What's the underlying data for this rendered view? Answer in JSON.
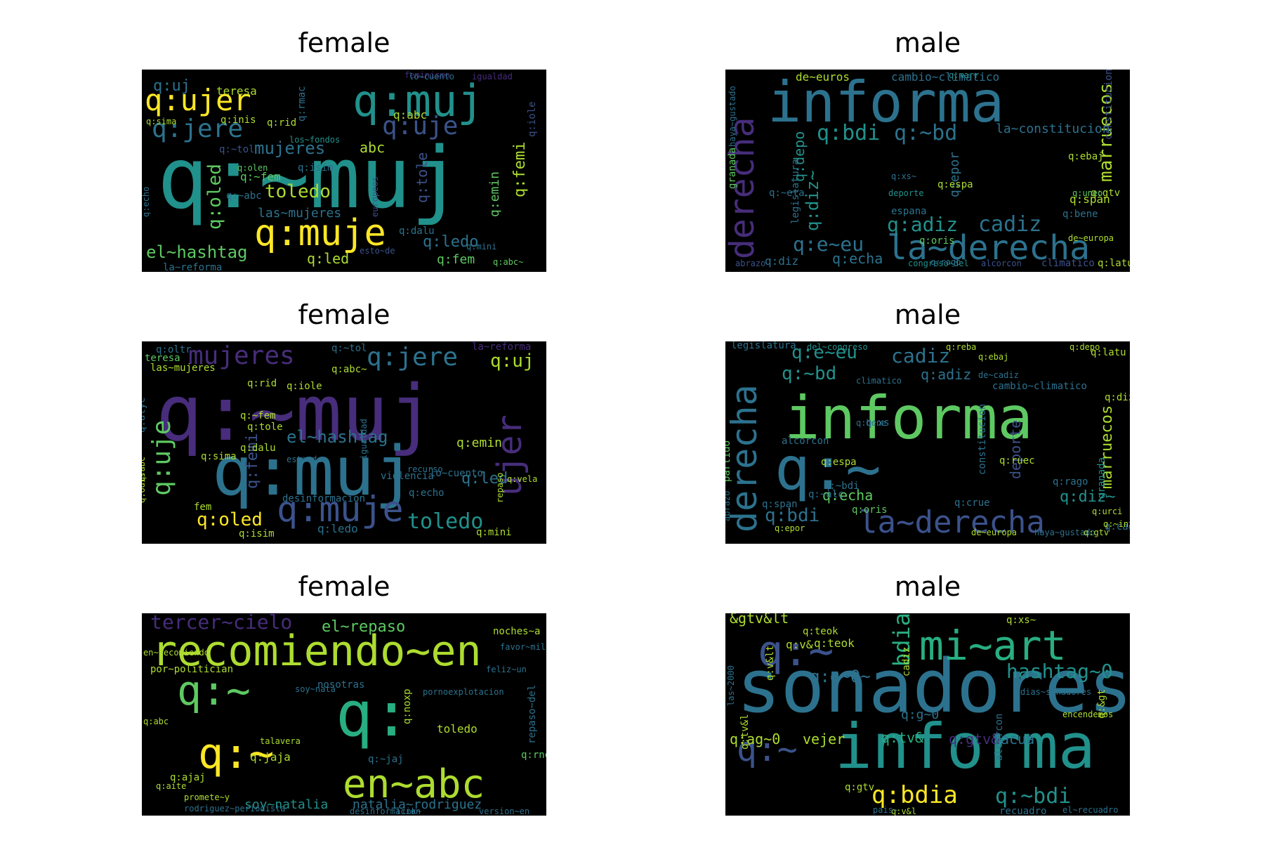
{
  "colors": {
    "background": "#000000",
    "viridis": [
      "#440154",
      "#472d7b",
      "#3b528b",
      "#2c728e",
      "#21918c",
      "#28ae80",
      "#5ec962",
      "#addc30",
      "#fde725"
    ]
  },
  "panels": [
    {
      "title": "female",
      "words": [
        {
          "text": "q:~muj",
          "c": 4
        },
        {
          "text": "q:muj",
          "c": 4
        },
        {
          "text": "q:muje",
          "c": 8
        },
        {
          "text": "q:ujer",
          "c": 8
        },
        {
          "text": "q:jere",
          "c": 3
        },
        {
          "text": "q:uje",
          "c": 2
        },
        {
          "text": "mujeres",
          "c": 3
        },
        {
          "text": "toledo",
          "c": 7
        },
        {
          "text": "las~mujeres",
          "c": 3
        },
        {
          "text": "el~hashtag",
          "c": 6
        },
        {
          "text": "abc",
          "c": 7
        },
        {
          "text": "q:oled",
          "c": 6
        },
        {
          "text": "q:femi",
          "c": 7
        },
        {
          "text": "q:emin",
          "c": 6
        },
        {
          "text": "q:ledo",
          "c": 3
        },
        {
          "text": "q:led",
          "c": 7
        },
        {
          "text": "q:fem",
          "c": 6
        },
        {
          "text": "q:tole",
          "c": 2
        },
        {
          "text": "q:uj",
          "c": 3
        },
        {
          "text": "teresa",
          "c": 7
        },
        {
          "text": "q:abc",
          "c": 7
        },
        {
          "text": "q:inis",
          "c": 7
        },
        {
          "text": "q:rid",
          "c": 7
        },
        {
          "text": "q:rmac",
          "c": 3
        },
        {
          "text": "la~reforma",
          "c": 3
        },
        {
          "text": "q:abc~",
          "c": 6
        },
        {
          "text": "q:sima",
          "c": 7
        },
        {
          "text": "los~fondos",
          "c": 4
        },
        {
          "text": "europeos",
          "c": 2
        },
        {
          "text": "q:~fem",
          "c": 6
        },
        {
          "text": "q:~abc",
          "c": 3
        },
        {
          "text": "feminismo",
          "c": 1
        },
        {
          "text": "lo~cuento",
          "c": 3
        },
        {
          "text": "igualdad",
          "c": 1
        },
        {
          "text": "q:dalu",
          "c": 3
        },
        {
          "text": "q:olen",
          "c": 6
        },
        {
          "text": "q:isim",
          "c": 3
        },
        {
          "text": "esto~de",
          "c": 2
        },
        {
          "text": "q:mini",
          "c": 3
        },
        {
          "text": "q:iole",
          "c": 2
        },
        {
          "text": "q:echo",
          "c": 3
        },
        {
          "text": "q:~tol",
          "c": 2
        }
      ]
    },
    {
      "title": "male",
      "words": [
        {
          "text": "informa",
          "c": 3
        },
        {
          "text": "la~derecha",
          "c": 3
        },
        {
          "text": "derecha",
          "c": 1
        },
        {
          "text": "q:bdi",
          "c": 4
        },
        {
          "text": "q:~bd",
          "c": 3
        },
        {
          "text": "q:adiz",
          "c": 4
        },
        {
          "text": "cadiz",
          "c": 3
        },
        {
          "text": "q:e~eu",
          "c": 3
        },
        {
          "text": "marruecos",
          "c": 7
        },
        {
          "text": "la~constitucion",
          "c": 3
        },
        {
          "text": "cambio~climatico",
          "c": 3
        },
        {
          "text": "de~euros",
          "c": 7
        },
        {
          "text": "q:diz~",
          "c": 4
        },
        {
          "text": "q:depo",
          "c": 4
        },
        {
          "text": "q:echa",
          "c": 3
        },
        {
          "text": "q:diz",
          "c": 3
        },
        {
          "text": "q:epor",
          "c": 3
        },
        {
          "text": "granada",
          "c": 6
        },
        {
          "text": "congreso~del",
          "c": 4
        },
        {
          "text": "alcorcon",
          "c": 2
        },
        {
          "text": "climatico",
          "c": 2
        },
        {
          "text": "q:latu",
          "c": 7
        },
        {
          "text": "q:rago",
          "c": 3
        },
        {
          "text": "q:oris",
          "c": 6
        },
        {
          "text": "legislatura",
          "c": 3
        },
        {
          "text": "q:espa",
          "c": 7
        },
        {
          "text": "espana",
          "c": 3
        },
        {
          "text": "q:marr",
          "c": 4
        },
        {
          "text": "constitucion",
          "c": 2
        },
        {
          "text": "q:gtv",
          "c": 7
        },
        {
          "text": "q:bene",
          "c": 3
        },
        {
          "text": "q:span",
          "c": 7
        },
        {
          "text": "q:~eta",
          "c": 3
        },
        {
          "text": "q:xs~",
          "c": 3
        },
        {
          "text": "deporte",
          "c": 4
        },
        {
          "text": "q:ebaj",
          "c": 7
        },
        {
          "text": "abrazo",
          "c": 2
        },
        {
          "text": "de~europa",
          "c": 7
        },
        {
          "text": "haya~gustado",
          "c": 3
        },
        {
          "text": "q:uneo",
          "c": 6
        }
      ]
    },
    {
      "title": "female",
      "words": [
        {
          "text": "q:~muj",
          "c": 1
        },
        {
          "text": "q:muj",
          "c": 3
        },
        {
          "text": "q:muje",
          "c": 2
        },
        {
          "text": "mujeres",
          "c": 1
        },
        {
          "text": "q:jere",
          "c": 3
        },
        {
          "text": "q:uje",
          "c": 6
        },
        {
          "text": "ujer",
          "c": 1
        },
        {
          "text": "toledo",
          "c": 4
        },
        {
          "text": "el~hashtag",
          "c": 3
        },
        {
          "text": "q:oled",
          "c": 8
        },
        {
          "text": "q:uj",
          "c": 7
        },
        {
          "text": "q:led",
          "c": 3
        },
        {
          "text": "q:femi",
          "c": 2
        },
        {
          "text": "q:emin",
          "c": 7
        },
        {
          "text": "las~mujeres",
          "c": 7
        },
        {
          "text": "teresa",
          "c": 6
        },
        {
          "text": "q:oltr",
          "c": 3
        },
        {
          "text": "q:~tol",
          "c": 3
        },
        {
          "text": "la~reforma",
          "c": 1
        },
        {
          "text": "q:abc~",
          "c": 7
        },
        {
          "text": "q:iole",
          "c": 7
        },
        {
          "text": "q:rid",
          "c": 7
        },
        {
          "text": "q:~fem",
          "c": 7
        },
        {
          "text": "q:tole",
          "c": 7
        },
        {
          "text": "q:dalu",
          "c": 7
        },
        {
          "text": "violencia",
          "c": 3
        },
        {
          "text": "igualdad",
          "c": 3
        },
        {
          "text": "recurso",
          "c": 3
        },
        {
          "text": "q:ledo",
          "c": 3
        },
        {
          "text": "q:isim",
          "c": 7
        },
        {
          "text": "q:mini",
          "c": 7
        },
        {
          "text": "q:abc",
          "c": 7
        },
        {
          "text": "desinformacion",
          "c": 3
        },
        {
          "text": "q:echo",
          "c": 3
        },
        {
          "text": "lo~cuento",
          "c": 3
        },
        {
          "text": "esto~de",
          "c": 3
        },
        {
          "text": "q:alyc",
          "c": 3
        },
        {
          "text": "q:sima",
          "c": 7
        },
        {
          "text": "q:odis",
          "c": 7
        },
        {
          "text": "fem",
          "c": 7
        },
        {
          "text": "repaso",
          "c": 7
        },
        {
          "text": "q:vela",
          "c": 7
        }
      ]
    },
    {
      "title": "male",
      "words": [
        {
          "text": "informa",
          "c": 6
        },
        {
          "text": "la~derecha",
          "c": 2
        },
        {
          "text": "derecha",
          "c": 3
        },
        {
          "text": "q:~",
          "c": 3
        },
        {
          "text": "q:bdi",
          "c": 3
        },
        {
          "text": "q:~bd",
          "c": 4
        },
        {
          "text": "q:e~eu",
          "c": 4
        },
        {
          "text": "cadiz",
          "c": 3
        },
        {
          "text": "q:adiz",
          "c": 3
        },
        {
          "text": "marruecos",
          "c": 7
        },
        {
          "text": "q:diz~",
          "c": 4
        },
        {
          "text": "q:echa",
          "c": 6
        },
        {
          "text": "q:~bdi",
          "c": 3
        },
        {
          "text": "legislatura",
          "c": 3
        },
        {
          "text": "del~congreso",
          "c": 4
        },
        {
          "text": "q:reba",
          "c": 7
        },
        {
          "text": "q:ebaj",
          "c": 7
        },
        {
          "text": "q:depo",
          "c": 7
        },
        {
          "text": "q:latu",
          "c": 7
        },
        {
          "text": "cambio~climatico",
          "c": 3
        },
        {
          "text": "de~cadiz",
          "c": 3
        },
        {
          "text": "constitucion",
          "c": 3
        },
        {
          "text": "deporte",
          "c": 2
        },
        {
          "text": "q:rago",
          "c": 3
        },
        {
          "text": "alcorcon",
          "c": 3
        },
        {
          "text": "partido",
          "c": 6
        },
        {
          "text": "q:espa",
          "c": 7
        },
        {
          "text": "q:~alc",
          "c": 3
        },
        {
          "text": "q:oris",
          "c": 6
        },
        {
          "text": "q:epor",
          "c": 7
        },
        {
          "text": "q:span",
          "c": 3
        },
        {
          "text": "q:xs",
          "c": 3
        },
        {
          "text": "q:crue",
          "c": 3
        },
        {
          "text": "q:diz",
          "c": 7
        },
        {
          "text": "granada",
          "c": 4
        },
        {
          "text": "q:ruec",
          "c": 7
        },
        {
          "text": "de~europa",
          "c": 7
        },
        {
          "text": "haya~gustado",
          "c": 3
        },
        {
          "text": "q:gtv",
          "c": 7
        },
        {
          "text": "q:urci",
          "c": 7
        },
        {
          "text": "q:cadi",
          "c": 3
        },
        {
          "text": "q:~inf",
          "c": 7
        },
        {
          "text": "climatico",
          "c": 3
        },
        {
          "text": "q:bene",
          "c": 3
        },
        {
          "text": "abrazo",
          "c": 3
        }
      ]
    },
    {
      "title": "female",
      "words": [
        {
          "text": "recomiendo~en",
          "c": 7
        },
        {
          "text": "en~abc",
          "c": 7
        },
        {
          "text": "q:~",
          "c": 6
        },
        {
          "text": "q:",
          "c": 5
        },
        {
          "text": "q:~",
          "c": 8
        },
        {
          "text": "tercer~cielo",
          "c": 1
        },
        {
          "text": "el~repaso",
          "c": 6
        },
        {
          "text": "soy~natalia",
          "c": 4
        },
        {
          "text": "natalia~rodriguez",
          "c": 3
        },
        {
          "text": "por~politician",
          "c": 7
        },
        {
          "text": "nosotras",
          "c": 3
        },
        {
          "text": "toledo",
          "c": 7
        },
        {
          "text": "q:noxp",
          "c": 7
        },
        {
          "text": "q:jaja",
          "c": 7
        },
        {
          "text": "q:ajaj",
          "c": 7
        },
        {
          "text": "q:rnox",
          "c": 6
        },
        {
          "text": "q:~jaj",
          "c": 3
        },
        {
          "text": "noches~a",
          "c": 7
        },
        {
          "text": "repaso~del",
          "c": 3
        },
        {
          "text": "en~recomiendo",
          "c": 7
        },
        {
          "text": "favor~mil",
          "c": 3
        },
        {
          "text": "pornoexplotacion",
          "c": 3
        },
        {
          "text": "feliz~un",
          "c": 3
        },
        {
          "text": "talavera",
          "c": 7
        },
        {
          "text": "soy~nata",
          "c": 3
        },
        {
          "text": "promete~y",
          "c": 7
        },
        {
          "text": "rodriguez~periodista",
          "c": 3
        },
        {
          "text": "desinformacion",
          "c": 3
        },
        {
          "text": "version~en",
          "c": 3
        },
        {
          "text": "link~",
          "c": 3
        },
        {
          "text": "q:abc",
          "c": 7
        },
        {
          "text": "q:aite",
          "c": 7
        }
      ]
    },
    {
      "title": "male",
      "words": [
        {
          "text": "sonadores",
          "c": 3
        },
        {
          "text": "informa",
          "c": 4
        },
        {
          "text": "mi~art",
          "c": 5
        },
        {
          "text": "q:~",
          "c": 2
        },
        {
          "text": "q:bdia",
          "c": 8
        },
        {
          "text": "q:~bdi",
          "c": 4
        },
        {
          "text": "q:~",
          "c": 2
        },
        {
          "text": "bdia",
          "c": 5
        },
        {
          "text": "hashtag~0",
          "c": 4
        },
        {
          "text": "q:g~0~",
          "c": 3
        },
        {
          "text": "q:ag~0",
          "c": 7
        },
        {
          "text": "vejer",
          "c": 7
        },
        {
          "text": "q:tv&",
          "c": 5
        },
        {
          "text": "q:gtv&",
          "c": 1
        },
        {
          "text": "facua",
          "c": 3
        },
        {
          "text": "&gtv&lt",
          "c": 7
        },
        {
          "text": "q:teok",
          "c": 7
        },
        {
          "text": "q:v&",
          "c": 7
        },
        {
          "text": "q:v&lt",
          "c": 7
        },
        {
          "text": "q:tv&l",
          "c": 7
        },
        {
          "text": "q:g~0",
          "c": 3
        },
        {
          "text": "dias~sonadores",
          "c": 3
        },
        {
          "text": "encendemos",
          "c": 7
        },
        {
          "text": "recuadro",
          "c": 3
        },
        {
          "text": "el~recuadro",
          "c": 3
        },
        {
          "text": "q:v&l",
          "c": 7
        },
        {
          "text": "q:gtv",
          "c": 7
        },
        {
          "text": "pais~",
          "c": 3
        },
        {
          "text": "q:&gt",
          "c": 7
        },
        {
          "text": "cadiz",
          "c": 7
        },
        {
          "text": "alcorcon",
          "c": 3
        },
        {
          "text": "q:xs~",
          "c": 7
        },
        {
          "text": "las~2000",
          "c": 3
        },
        {
          "text": "q:teok",
          "c": 7
        }
      ]
    }
  ]
}
